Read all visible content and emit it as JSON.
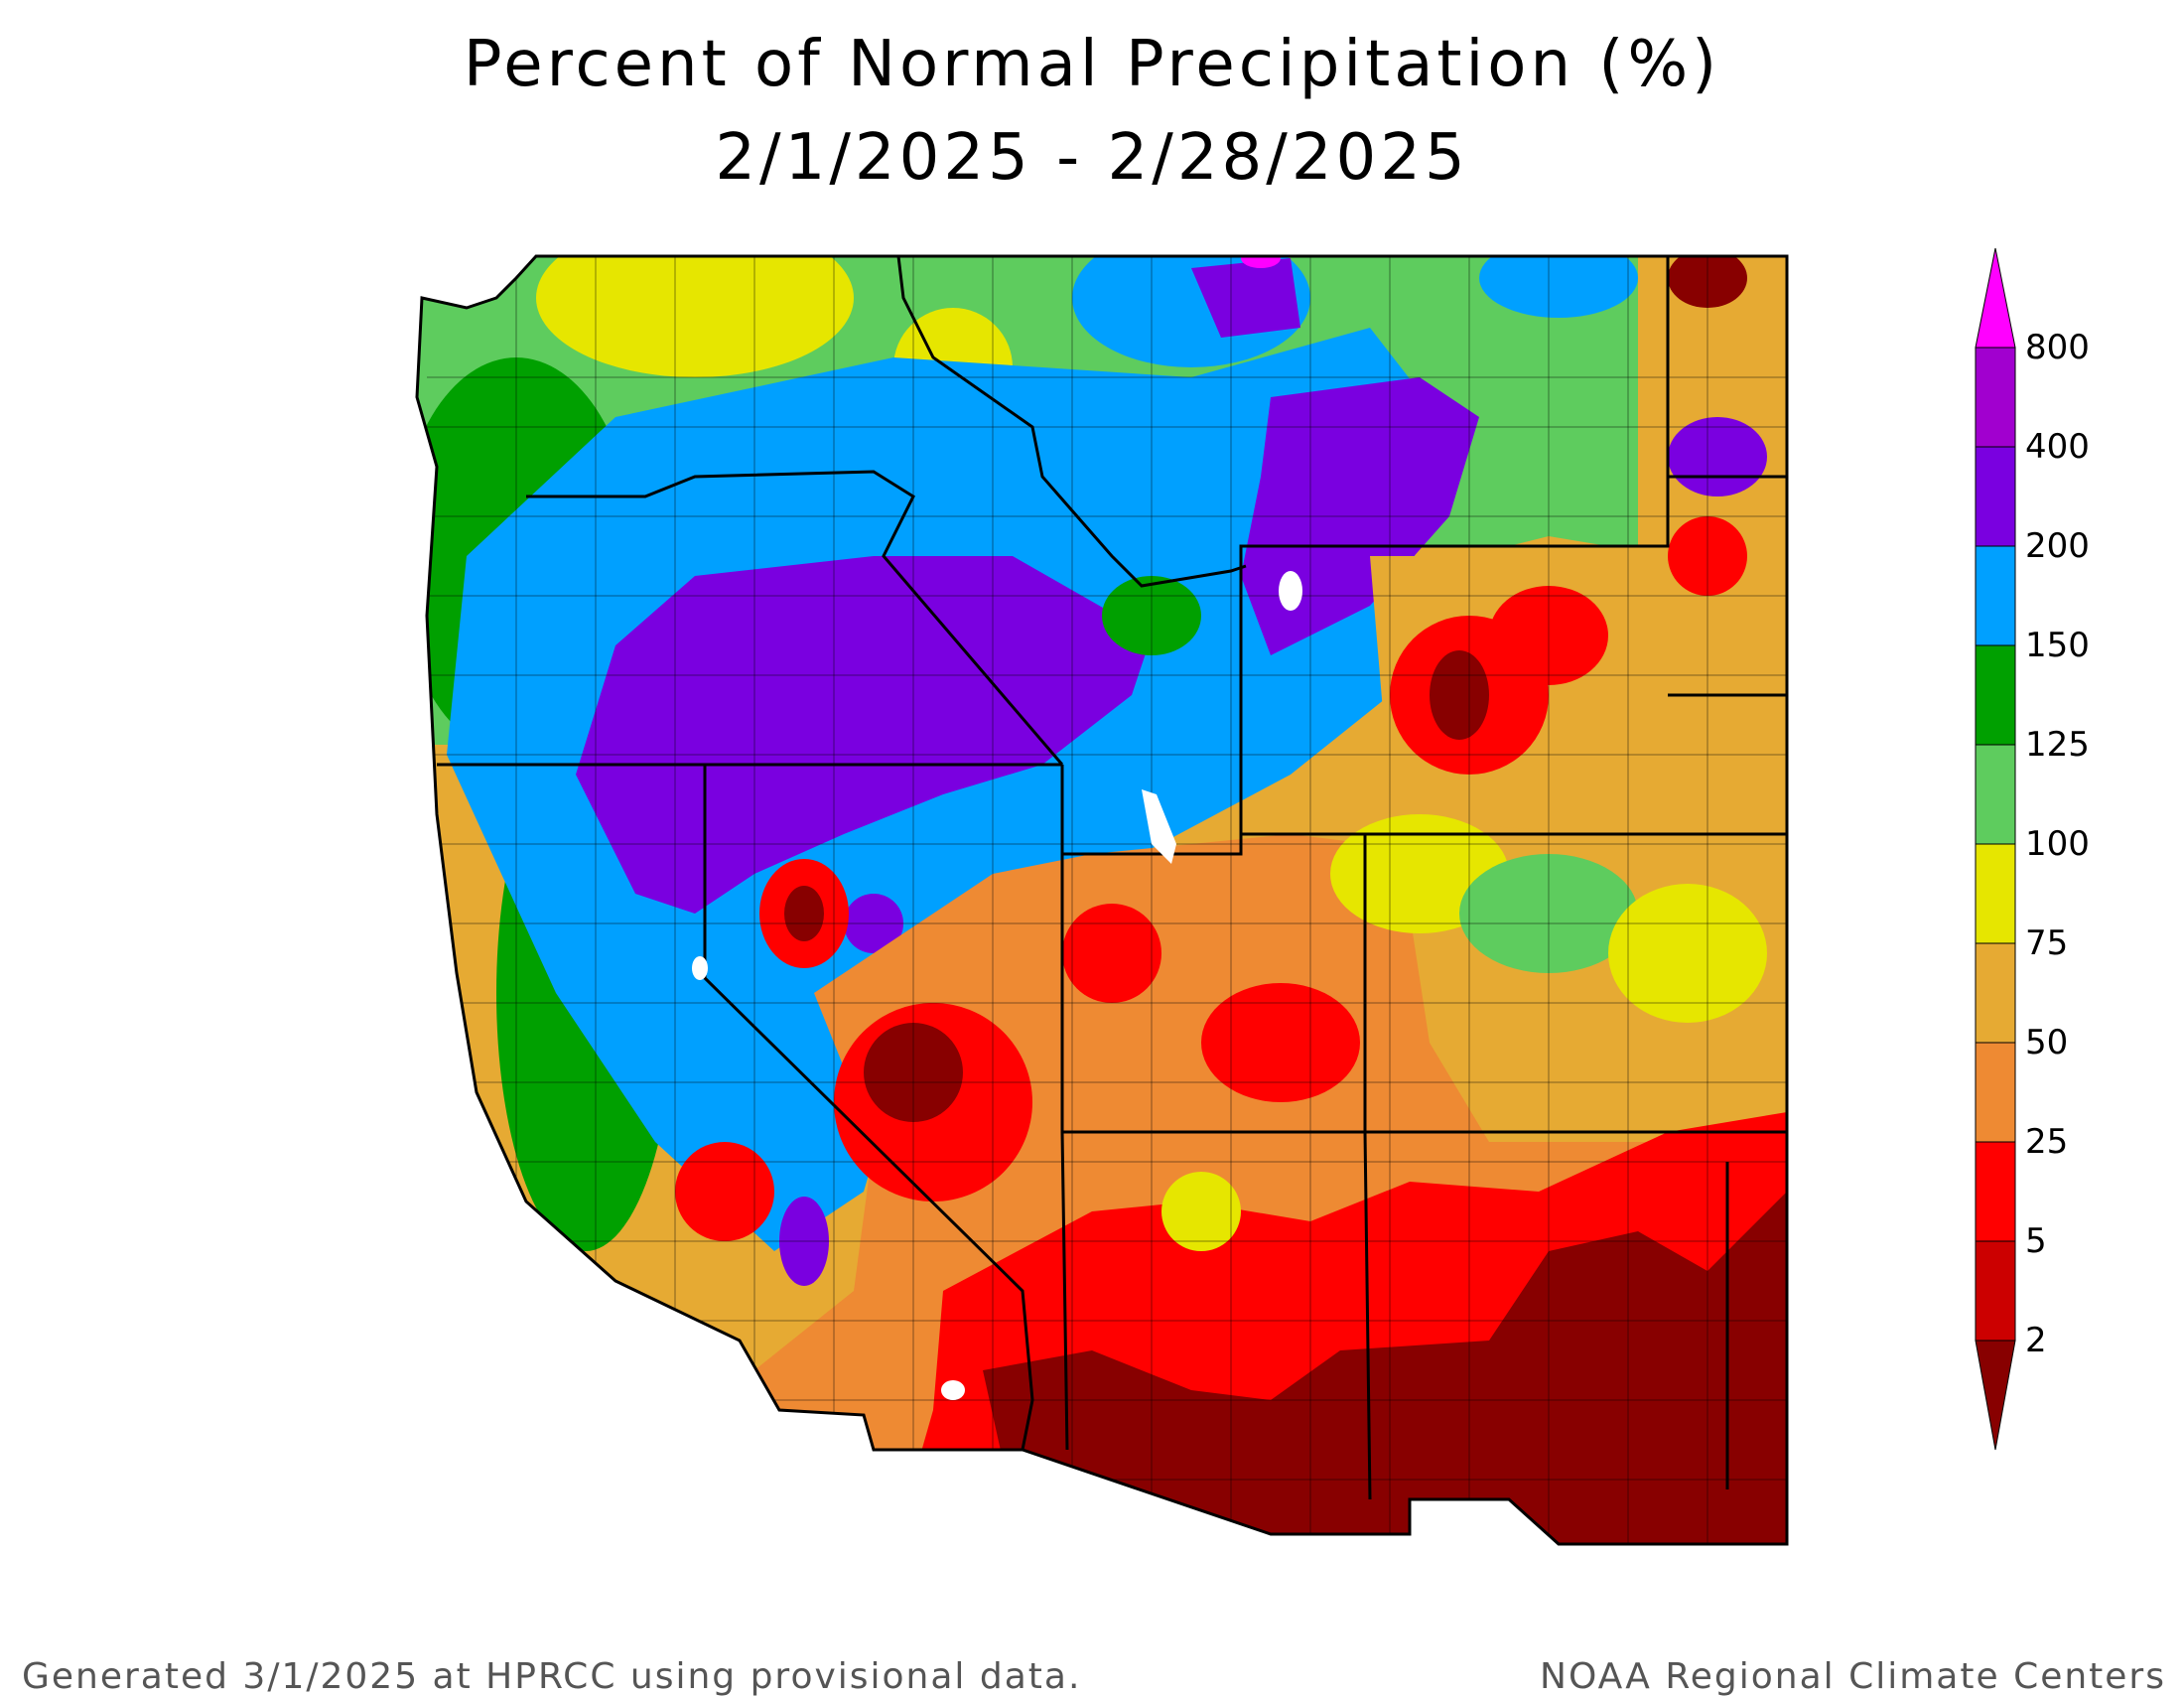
{
  "title": {
    "line1": "Percent of Normal Precipitation (%)",
    "line2": "2/1/2025 - 2/28/2025"
  },
  "footer": {
    "left": "Generated 3/1/2025 at HPRCC using provisional data.",
    "right": "NOAA Regional Climate Centers"
  },
  "legend": {
    "labels": [
      "800",
      "400",
      "200",
      "150",
      "125",
      "100",
      "75",
      "50",
      "25",
      "5",
      "2"
    ],
    "colors": [
      "#ff00ff",
      "#a100cf",
      "#7a00e0",
      "#00a0ff",
      "#00a000",
      "#5ecc5e",
      "#e6e600",
      "#e6aa33",
      "#ee8a33",
      "#ff0000",
      "#cc0000",
      "#880000"
    ]
  },
  "map_colors": {
    "dark_red": "#880000",
    "red": "#ff0000",
    "orange": "#ee8a33",
    "light_orange": "#e6aa33",
    "yellow": "#e6e600",
    "light_green": "#5ecc5e",
    "green": "#00a000",
    "blue": "#00a0ff",
    "purple": "#7a00e0",
    "magenta": "#ff00ff"
  }
}
